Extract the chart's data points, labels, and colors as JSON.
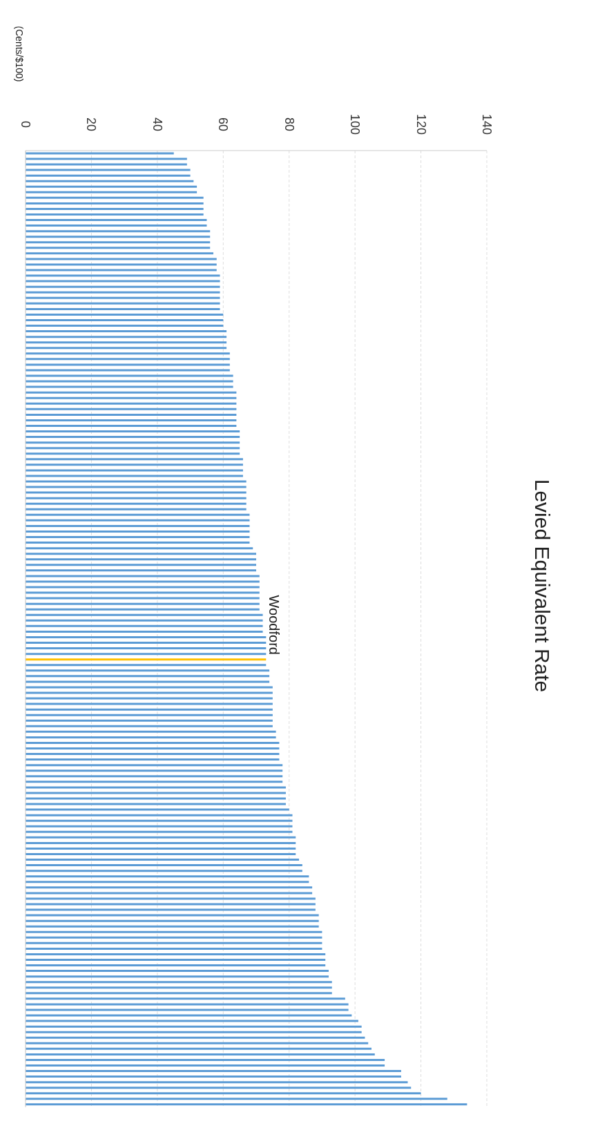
{
  "chart_data": {
    "type": "bar",
    "orientation": "horizontal",
    "title": "Levied Equivalent Rate",
    "categories": [
      null,
      null,
      null,
      null,
      null,
      null,
      null,
      null,
      null,
      null,
      null,
      null,
      null,
      null,
      null,
      null,
      null,
      null,
      null,
      null,
      null,
      null,
      null,
      null,
      null,
      null,
      null,
      null,
      null,
      null,
      null,
      null,
      null,
      null,
      null,
      null,
      null,
      null,
      null,
      null,
      null,
      null,
      null,
      null,
      null,
      null,
      null,
      null,
      null,
      null,
      null,
      null,
      null,
      null,
      null,
      null,
      null,
      null,
      null,
      null,
      null,
      null,
      null,
      null,
      null,
      null,
      null,
      null,
      null,
      null,
      null,
      null,
      null,
      null,
      null,
      null,
      null,
      null,
      null,
      null,
      null,
      null,
      null,
      null,
      null,
      null,
      null,
      null,
      null,
      null,
      null,
      null,
      null,
      null,
      null,
      null,
      null,
      null,
      null,
      null,
      null,
      null,
      null,
      null,
      null,
      null,
      null,
      null,
      null,
      null,
      null,
      null,
      null,
      null,
      null,
      null,
      null,
      null,
      null,
      null,
      null,
      null,
      null,
      null,
      null,
      null,
      null,
      null,
      null,
      null,
      null,
      null,
      null,
      null,
      null,
      null,
      null,
      null,
      null,
      null,
      null,
      null,
      null,
      null,
      null,
      null,
      null,
      null,
      null,
      null,
      null,
      null,
      null,
      null,
      null,
      null,
      null,
      null,
      null,
      null,
      null,
      null,
      null,
      null,
      null,
      null,
      null,
      null,
      null,
      null,
      null,
      null
    ],
    "values": [
      45,
      49,
      49,
      50,
      50,
      51,
      52,
      52,
      54,
      54,
      54,
      54,
      55,
      55,
      56,
      56,
      56,
      56,
      57,
      58,
      58,
      58,
      59,
      59,
      59,
      59,
      59,
      59,
      59,
      60,
      60,
      60,
      61,
      61,
      61,
      61,
      62,
      62,
      62,
      62,
      63,
      63,
      63,
      64,
      64,
      64,
      64,
      64,
      64,
      64,
      65,
      65,
      65,
      65,
      65,
      66,
      66,
      66,
      66,
      67,
      67,
      67,
      67,
      67,
      67,
      68,
      68,
      68,
      68,
      68,
      68,
      69,
      70,
      70,
      70,
      70,
      71,
      71,
      71,
      71,
      71,
      71,
      71,
      72,
      72,
      72,
      72,
      73,
      73,
      73,
      73,
      73,
      73,
      74,
      74,
      74,
      75,
      75,
      75,
      75,
      75,
      75,
      75,
      75,
      76,
      76,
      77,
      77,
      77,
      77,
      78,
      78,
      78,
      78,
      79,
      79,
      79,
      79,
      80,
      81,
      81,
      81,
      81,
      82,
      82,
      82,
      82,
      83,
      84,
      84,
      86,
      86,
      87,
      87,
      88,
      88,
      88,
      89,
      89,
      89,
      90,
      90,
      90,
      90,
      91,
      91,
      91,
      92,
      92,
      93,
      93,
      93,
      97,
      98,
      98,
      99,
      101,
      102,
      102,
      103,
      104,
      105,
      106,
      109,
      109,
      114,
      114,
      116,
      117,
      120,
      128,
      134
    ],
    "colors": [
      "#5b9bd5",
      "#5b9bd5",
      "#5b9bd5",
      "#5b9bd5",
      "#5b9bd5",
      "#5b9bd5",
      "#5b9bd5",
      "#5b9bd5",
      "#5b9bd5",
      "#5b9bd5",
      "#5b9bd5",
      "#5b9bd5",
      "#5b9bd5",
      "#5b9bd5",
      "#5b9bd5",
      "#5b9bd5",
      "#5b9bd5",
      "#5b9bd5",
      "#5b9bd5",
      "#5b9bd5",
      "#5b9bd5",
      "#5b9bd5",
      "#5b9bd5",
      "#5b9bd5",
      "#5b9bd5",
      "#5b9bd5",
      "#5b9bd5",
      "#5b9bd5",
      "#5b9bd5",
      "#5b9bd5",
      "#5b9bd5",
      "#5b9bd5",
      "#5b9bd5",
      "#5b9bd5",
      "#5b9bd5",
      "#5b9bd5",
      "#5b9bd5",
      "#5b9bd5",
      "#5b9bd5",
      "#5b9bd5",
      "#5b9bd5",
      "#5b9bd5",
      "#5b9bd5",
      "#5b9bd5",
      "#5b9bd5",
      "#5b9bd5",
      "#5b9bd5",
      "#5b9bd5",
      "#5b9bd5",
      "#5b9bd5",
      "#5b9bd5",
      "#5b9bd5",
      "#5b9bd5",
      "#5b9bd5",
      "#5b9bd5",
      "#5b9bd5",
      "#5b9bd5",
      "#5b9bd5",
      "#5b9bd5",
      "#5b9bd5",
      "#5b9bd5",
      "#5b9bd5",
      "#5b9bd5",
      "#5b9bd5",
      "#5b9bd5",
      "#5b9bd5",
      "#5b9bd5",
      "#5b9bd5",
      "#5b9bd5",
      "#5b9bd5",
      "#5b9bd5",
      "#5b9bd5",
      "#5b9bd5",
      "#5b9bd5",
      "#5b9bd5",
      "#5b9bd5",
      "#5b9bd5",
      "#5b9bd5",
      "#5b9bd5",
      "#5b9bd5",
      "#5b9bd5",
      "#5b9bd5",
      "#5b9bd5",
      "#5b9bd5",
      "#5b9bd5",
      "#5b9bd5",
      "#5b9bd5",
      "#5b9bd5",
      "#5b9bd5",
      "#5b9bd5",
      "#5b9bd5",
      "#ffc000",
      "#5b9bd5",
      "#5b9bd5",
      "#5b9bd5",
      "#5b9bd5",
      "#5b9bd5",
      "#5b9bd5",
      "#5b9bd5",
      "#5b9bd5",
      "#5b9bd5",
      "#5b9bd5",
      "#5b9bd5",
      "#5b9bd5",
      "#5b9bd5",
      "#5b9bd5",
      "#5b9bd5",
      "#5b9bd5",
      "#5b9bd5",
      "#5b9bd5",
      "#5b9bd5",
      "#5b9bd5",
      "#5b9bd5",
      "#5b9bd5",
      "#5b9bd5",
      "#5b9bd5",
      "#5b9bd5",
      "#5b9bd5",
      "#5b9bd5",
      "#5b9bd5",
      "#5b9bd5",
      "#5b9bd5",
      "#5b9bd5",
      "#5b9bd5",
      "#5b9bd5",
      "#5b9bd5",
      "#5b9bd5",
      "#5b9bd5",
      "#5b9bd5",
      "#5b9bd5",
      "#5b9bd5",
      "#5b9bd5",
      "#5b9bd5",
      "#5b9bd5",
      "#5b9bd5",
      "#5b9bd5",
      "#5b9bd5",
      "#5b9bd5",
      "#5b9bd5",
      "#5b9bd5",
      "#5b9bd5",
      "#5b9bd5",
      "#5b9bd5",
      "#5b9bd5",
      "#5b9bd5",
      "#5b9bd5",
      "#5b9bd5",
      "#5b9bd5",
      "#5b9bd5",
      "#5b9bd5",
      "#5b9bd5",
      "#5b9bd5",
      "#5b9bd5",
      "#5b9bd5",
      "#5b9bd5",
      "#5b9bd5",
      "#5b9bd5",
      "#5b9bd5",
      "#5b9bd5",
      "#5b9bd5",
      "#5b9bd5",
      "#5b9bd5",
      "#5b9bd5",
      "#5b9bd5",
      "#5b9bd5",
      "#5b9bd5",
      "#5b9bd5",
      "#5b9bd5",
      "#5b9bd5",
      "#5b9bd5",
      "#5b9bd5",
      "#5b9bd5"
    ],
    "annotations": [
      "(Cents/$100)",
      {
        "text": "Woodford",
        "x": 73
      }
    ],
    "xlim": [
      0,
      140
    ],
    "xticks": [
      0,
      20,
      40,
      60,
      80,
      100,
      120,
      140
    ],
    "grid": "x"
  }
}
